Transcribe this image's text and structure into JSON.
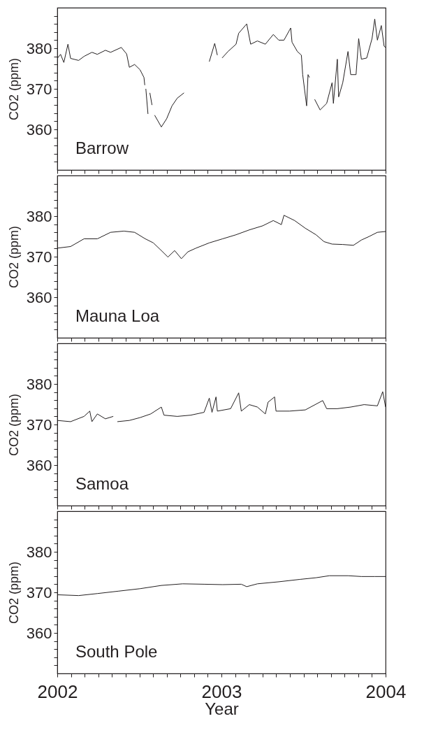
{
  "chart_data": [
    {
      "type": "line",
      "ylabel": "CO2 (ppm)",
      "xlim": [
        2002,
        2004
      ],
      "ylim": [
        350,
        390
      ],
      "tick_labels": "y",
      "grid": false,
      "xticks": [
        2002,
        {
          "value": 2002.083,
          "label": null
        },
        {
          "value": 2002.167,
          "label": null
        },
        {
          "value": 2002.25,
          "label": null
        },
        {
          "value": 2002.333,
          "label": null
        },
        {
          "value": 2002.417,
          "label": null
        },
        {
          "value": 2002.5,
          "label": null
        },
        {
          "value": 2002.583,
          "label": null
        },
        {
          "value": 2002.667,
          "label": null
        },
        {
          "value": 2002.75,
          "label": null
        },
        {
          "value": 2002.833,
          "label": null
        },
        {
          "value": 2002.917,
          "label": null
        },
        2003,
        {
          "value": 2003.083,
          "label": null
        },
        {
          "value": 2003.167,
          "label": null
        },
        {
          "value": 2003.25,
          "label": null
        },
        {
          "value": 2003.333,
          "label": null
        },
        {
          "value": 2003.417,
          "label": null
        },
        {
          "value": 2003.5,
          "label": null
        },
        {
          "value": 2003.583,
          "label": null
        },
        {
          "value": 2003.667,
          "label": null
        },
        {
          "value": 2003.75,
          "label": null
        },
        {
          "value": 2003.833,
          "label": null
        },
        {
          "value": 2003.917,
          "label": null
        },
        2004
      ],
      "yticks": [
        {
          "value": 352,
          "label": null
        },
        {
          "value": 354,
          "label": null
        },
        {
          "value": 356,
          "label": null
        },
        {
          "value": 358,
          "label": null
        },
        360,
        {
          "value": 362,
          "label": null
        },
        {
          "value": 364,
          "label": null
        },
        {
          "value": 366,
          "label": null
        },
        {
          "value": 368,
          "label": null
        },
        370,
        {
          "value": 372,
          "label": null
        },
        {
          "value": 374,
          "label": null
        },
        {
          "value": 376,
          "label": null
        },
        {
          "value": 378,
          "label": null
        },
        380,
        {
          "value": 382,
          "label": null
        },
        {
          "value": 384,
          "label": null
        },
        {
          "value": 386,
          "label": null
        },
        {
          "value": 388,
          "label": null
        }
      ],
      "series": [
        {
          "name": "Barrow",
          "color": "#231f20",
          "x": [
            2002.0,
            2002.02,
            2002.04,
            2002.065,
            2002.081,
            2002.13,
            2002.163,
            2002.211,
            2002.244,
            2002.293,
            2002.325,
            2002.39,
            2002.4225,
            2002.439,
            2002.471,
            2002.504,
            2002.528,
            2002.533,
            2002.536,
            2002.5395,
            2002.5525,
            2002.558,
            2002.564,
            2002.577,
            2002.585,
            2002.593,
            2002.634,
            2002.666,
            2002.699,
            2002.731,
            2002.772,
            2002.85,
            2002.926,
            2002.959,
            2002.975,
            2002.99,
            2003.004,
            2003.04,
            2003.089,
            2003.105,
            2003.154,
            2003.178,
            2003.219,
            2003.2675,
            2003.316,
            2003.349,
            2003.381,
            2003.422,
            2003.43,
            2003.4625,
            2003.487,
            2003.495,
            2003.519,
            2003.5275,
            2003.536,
            2003.55,
            2003.568,
            2003.601,
            2003.641,
            2003.674,
            2003.682,
            2003.706,
            2003.714,
            2003.739,
            2003.771,
            2003.7875,
            2003.82,
            2003.836,
            2003.8525,
            2003.885,
            2003.9175,
            2003.934,
            2003.95,
            2003.974,
            2003.991,
            2004.0
          ],
          "values": [
            377.5,
            378.5,
            376.5,
            381,
            377.5,
            377,
            378,
            379,
            378.5,
            379.5,
            379,
            380.2,
            378.6,
            375.3,
            376,
            374.7,
            372.8,
            370.9,
            null,
            370,
            363.8,
            null,
            369,
            366,
            null,
            363.5,
            360.6,
            362.6,
            365.8,
            367.7,
            369,
            null,
            376.7,
            381.2,
            378.3,
            null,
            377.6,
            379.2,
            381,
            383.7,
            386,
            381,
            381.8,
            381,
            383.4,
            382,
            382,
            385,
            381.5,
            379.2,
            378.3,
            373.5,
            365.8,
            373.5,
            372.8,
            null,
            367.4,
            364.8,
            366.4,
            371.5,
            366.4,
            377.3,
            368,
            371.5,
            379.2,
            373.5,
            373.5,
            382.4,
            377.3,
            377.6,
            382.4,
            387.2,
            382,
            385.6,
            380.5,
            380.2
          ]
        }
      ]
    },
    {
      "type": "line",
      "ylabel": "CO2 (ppm)",
      "xlim": [
        2002,
        2004
      ],
      "ylim": [
        350,
        390
      ],
      "tick_labels": "y",
      "grid": false,
      "xticks": [
        2002,
        {
          "value": 2002.083,
          "label": null
        },
        {
          "value": 2002.167,
          "label": null
        },
        {
          "value": 2002.25,
          "label": null
        },
        {
          "value": 2002.333,
          "label": null
        },
        {
          "value": 2002.417,
          "label": null
        },
        {
          "value": 2002.5,
          "label": null
        },
        {
          "value": 2002.583,
          "label": null
        },
        {
          "value": 2002.667,
          "label": null
        },
        {
          "value": 2002.75,
          "label": null
        },
        {
          "value": 2002.833,
          "label": null
        },
        {
          "value": 2002.917,
          "label": null
        },
        2003,
        {
          "value": 2003.083,
          "label": null
        },
        {
          "value": 2003.167,
          "label": null
        },
        {
          "value": 2003.25,
          "label": null
        },
        {
          "value": 2003.333,
          "label": null
        },
        {
          "value": 2003.417,
          "label": null
        },
        {
          "value": 2003.5,
          "label": null
        },
        {
          "value": 2003.583,
          "label": null
        },
        {
          "value": 2003.667,
          "label": null
        },
        {
          "value": 2003.75,
          "label": null
        },
        {
          "value": 2003.833,
          "label": null
        },
        {
          "value": 2003.917,
          "label": null
        },
        2004
      ],
      "yticks": [
        {
          "value": 352,
          "label": null
        },
        {
          "value": 354,
          "label": null
        },
        {
          "value": 356,
          "label": null
        },
        {
          "value": 358,
          "label": null
        },
        360,
        {
          "value": 362,
          "label": null
        },
        {
          "value": 364,
          "label": null
        },
        {
          "value": 366,
          "label": null
        },
        {
          "value": 368,
          "label": null
        },
        370,
        {
          "value": 372,
          "label": null
        },
        {
          "value": 374,
          "label": null
        },
        {
          "value": 376,
          "label": null
        },
        {
          "value": 378,
          "label": null
        },
        380,
        {
          "value": 382,
          "label": null
        },
        {
          "value": 384,
          "label": null
        },
        {
          "value": 386,
          "label": null
        },
        {
          "value": 388,
          "label": null
        }
      ],
      "series": [
        {
          "name": "Mauna Loa",
          "color": "#231f20",
          "x": [
            2002.0,
            2002.081,
            2002.163,
            2002.244,
            2002.325,
            2002.406,
            2002.471,
            2002.536,
            2002.585,
            2002.634,
            2002.674,
            2002.715,
            2002.756,
            2002.796,
            2002.845,
            2002.926,
            2003.0075,
            2003.089,
            2003.17,
            2003.251,
            2003.316,
            2003.365,
            2003.381,
            2003.446,
            2003.511,
            2003.576,
            2003.625,
            2003.674,
            2003.739,
            2003.804,
            2003.8525,
            2003.901,
            2003.95,
            2004.0
          ],
          "values": [
            372.1,
            372.5,
            374.4,
            374.4,
            376,
            376.3,
            376,
            374.4,
            373.4,
            371.5,
            369.9,
            371.5,
            369.5,
            371.2,
            372.1,
            373.4,
            374.4,
            375.4,
            376.6,
            377.6,
            378.9,
            377.9,
            380.2,
            378.9,
            377,
            375.4,
            373.7,
            373.1,
            373,
            372.8,
            374.1,
            375,
            376,
            376.2
          ]
        }
      ]
    },
    {
      "type": "line",
      "ylabel": "CO2 (ppm)",
      "xlim": [
        2002,
        2004
      ],
      "ylim": [
        350,
        390
      ],
      "tick_labels": "y",
      "grid": false,
      "xticks": [
        2002,
        {
          "value": 2002.083,
          "label": null
        },
        {
          "value": 2002.167,
          "label": null
        },
        {
          "value": 2002.25,
          "label": null
        },
        {
          "value": 2002.333,
          "label": null
        },
        {
          "value": 2002.417,
          "label": null
        },
        {
          "value": 2002.5,
          "label": null
        },
        {
          "value": 2002.583,
          "label": null
        },
        {
          "value": 2002.667,
          "label": null
        },
        {
          "value": 2002.75,
          "label": null
        },
        {
          "value": 2002.833,
          "label": null
        },
        {
          "value": 2002.917,
          "label": null
        },
        2003,
        {
          "value": 2003.083,
          "label": null
        },
        {
          "value": 2003.167,
          "label": null
        },
        {
          "value": 2003.25,
          "label": null
        },
        {
          "value": 2003.333,
          "label": null
        },
        {
          "value": 2003.417,
          "label": null
        },
        {
          "value": 2003.5,
          "label": null
        },
        {
          "value": 2003.583,
          "label": null
        },
        {
          "value": 2003.667,
          "label": null
        },
        {
          "value": 2003.75,
          "label": null
        },
        {
          "value": 2003.833,
          "label": null
        },
        {
          "value": 2003.917,
          "label": null
        },
        2004
      ],
      "yticks": [
        {
          "value": 352,
          "label": null
        },
        {
          "value": 354,
          "label": null
        },
        {
          "value": 356,
          "label": null
        },
        {
          "value": 358,
          "label": null
        },
        360,
        {
          "value": 362,
          "label": null
        },
        {
          "value": 364,
          "label": null
        },
        {
          "value": 366,
          "label": null
        },
        {
          "value": 368,
          "label": null
        },
        370,
        {
          "value": 372,
          "label": null
        },
        {
          "value": 374,
          "label": null
        },
        {
          "value": 376,
          "label": null
        },
        {
          "value": 378,
          "label": null
        },
        380,
        {
          "value": 382,
          "label": null
        },
        {
          "value": 384,
          "label": null
        },
        {
          "value": 386,
          "label": null
        },
        {
          "value": 388,
          "label": null
        }
      ],
      "series": [
        {
          "name": "Samoa",
          "color": "#231f20",
          "x": [
            2002.0,
            2002.081,
            2002.163,
            2002.198,
            2002.211,
            2002.244,
            2002.293,
            2002.341,
            2002.35,
            2002.366,
            2002.439,
            2002.504,
            2002.569,
            2002.634,
            2002.65,
            2002.731,
            2002.8125,
            2002.894,
            2002.926,
            2002.9425,
            2002.967,
            2002.975,
            2003.056,
            2003.105,
            2003.121,
            2003.17,
            2003.219,
            2003.2675,
            2003.284,
            2003.324,
            2003.3325,
            2003.414,
            2003.511,
            2003.617,
            2003.641,
            2003.706,
            2003.7875,
            2003.869,
            2003.95,
            2003.9825,
            2004.0
          ],
          "values": [
            371,
            370.7,
            372,
            373.3,
            370.7,
            372.6,
            371.4,
            372,
            null,
            370.7,
            371,
            371.7,
            372.6,
            374.3,
            372.3,
            372,
            372.3,
            373,
            376.5,
            373,
            376.8,
            373.3,
            373.9,
            377.8,
            373.3,
            374.9,
            374.3,
            372.6,
            375.5,
            376.8,
            373.3,
            373.3,
            373.6,
            375.9,
            373.9,
            373.9,
            374.3,
            374.9,
            374.6,
            378.1,
            374.3
          ]
        }
      ]
    },
    {
      "type": "line",
      "ylabel": "CO2 (ppm)",
      "xlabel": "Year",
      "xlim": [
        2002,
        2004
      ],
      "ylim": [
        350,
        390
      ],
      "grid": false,
      "xticks": [
        2002,
        {
          "value": 2002.083,
          "label": null
        },
        {
          "value": 2002.167,
          "label": null
        },
        {
          "value": 2002.25,
          "label": null
        },
        {
          "value": 2002.333,
          "label": null
        },
        {
          "value": 2002.417,
          "label": null
        },
        {
          "value": 2002.5,
          "label": null
        },
        {
          "value": 2002.583,
          "label": null
        },
        {
          "value": 2002.667,
          "label": null
        },
        {
          "value": 2002.75,
          "label": null
        },
        {
          "value": 2002.833,
          "label": null
        },
        {
          "value": 2002.917,
          "label": null
        },
        2003,
        {
          "value": 2003.083,
          "label": null
        },
        {
          "value": 2003.167,
          "label": null
        },
        {
          "value": 2003.25,
          "label": null
        },
        {
          "value": 2003.333,
          "label": null
        },
        {
          "value": 2003.417,
          "label": null
        },
        {
          "value": 2003.5,
          "label": null
        },
        {
          "value": 2003.583,
          "label": null
        },
        {
          "value": 2003.667,
          "label": null
        },
        {
          "value": 2003.75,
          "label": null
        },
        {
          "value": 2003.833,
          "label": null
        },
        {
          "value": 2003.917,
          "label": null
        },
        2004
      ],
      "yticks": [
        {
          "value": 352,
          "label": null
        },
        {
          "value": 354,
          "label": null
        },
        {
          "value": 356,
          "label": null
        },
        {
          "value": 358,
          "label": null
        },
        360,
        {
          "value": 362,
          "label": null
        },
        {
          "value": 364,
          "label": null
        },
        {
          "value": 366,
          "label": null
        },
        {
          "value": 368,
          "label": null
        },
        370,
        {
          "value": 372,
          "label": null
        },
        {
          "value": 374,
          "label": null
        },
        {
          "value": 376,
          "label": null
        },
        {
          "value": 378,
          "label": null
        },
        380,
        {
          "value": 382,
          "label": null
        },
        {
          "value": 384,
          "label": null
        },
        {
          "value": 386,
          "label": null
        },
        {
          "value": 388,
          "label": null
        }
      ],
      "series": [
        {
          "name": "South Pole",
          "color": "#231f20",
          "x": [
            2002.0,
            2002.13,
            2002.244,
            2002.374,
            2002.504,
            2002.634,
            2002.764,
            2002.894,
            2003.0075,
            2003.121,
            2003.154,
            2003.219,
            2003.349,
            2003.479,
            2003.576,
            2003.6575,
            2003.771,
            2003.8525,
            2003.934,
            2004.0
          ],
          "values": [
            369.4,
            369.2,
            369.7,
            370.3,
            370.9,
            371.7,
            372.1,
            372,
            371.9,
            372,
            371.4,
            372.1,
            372.6,
            373.2,
            373.6,
            374.1,
            374.1,
            373.9,
            373.9,
            373.9
          ]
        }
      ]
    }
  ]
}
